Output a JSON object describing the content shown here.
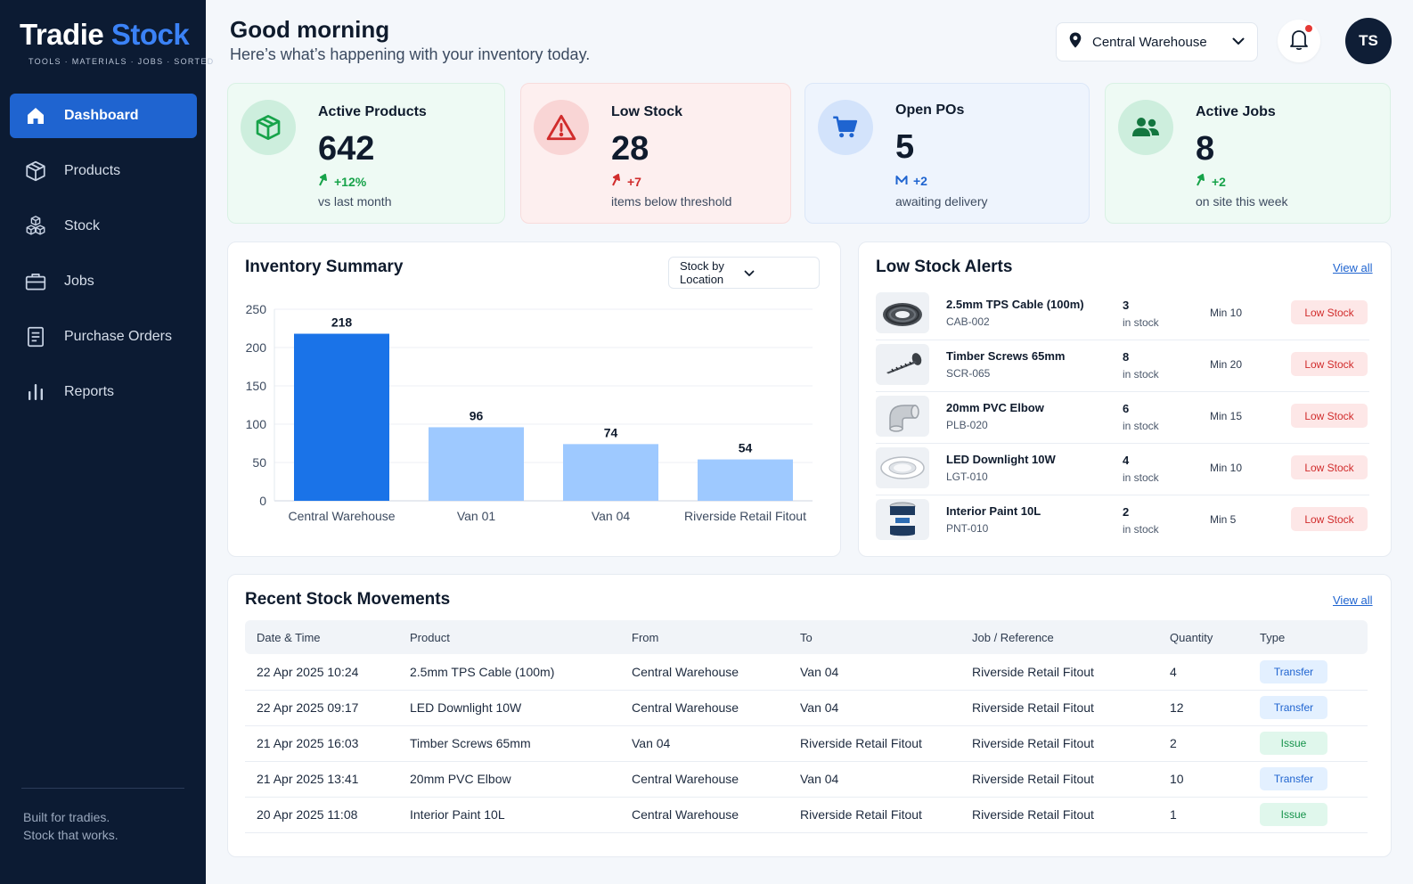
{
  "app": {
    "logo_primary": "Tradie",
    "logo_accent": "Stock",
    "tagline": "TOOLS · MATERIALS · JOBS · SORTED"
  },
  "sidebar": {
    "items": [
      {
        "label": "Dashboard",
        "icon": "home-icon",
        "active": true
      },
      {
        "label": "Products",
        "icon": "box-icon",
        "active": false
      },
      {
        "label": "Stock",
        "icon": "stacked-boxes-icon",
        "active": false
      },
      {
        "label": "Jobs",
        "icon": "briefcase-icon",
        "active": false
      },
      {
        "label": "Purchase Orders",
        "icon": "document-icon",
        "active": false
      },
      {
        "label": "Reports",
        "icon": "bar-chart-icon",
        "active": false
      }
    ],
    "footer_line1": "Built for tradies.",
    "footer_line2": "Stock that works."
  },
  "header": {
    "greeting": "Good morning",
    "subtitle": "Here’s what’s happening with your inventory today.",
    "location": "Central Warehouse",
    "avatar_initials": "TS",
    "has_notifications": true
  },
  "stats": [
    {
      "title": "Active Products",
      "value": "642",
      "delta": "+12%",
      "sub": "vs last month",
      "icon": "cube-icon",
      "color": "#17a34a"
    },
    {
      "title": "Low Stock",
      "value": "28",
      "delta": "+7",
      "sub": "items below threshold",
      "icon": "warning-icon",
      "color": "#d12c2c"
    },
    {
      "title": "Open POs",
      "value": "5",
      "delta": "+2",
      "sub": "awaiting delivery",
      "icon": "cart-icon",
      "color": "#1f64d0"
    },
    {
      "title": "Active Jobs",
      "value": "8",
      "delta": "+2",
      "sub": "on site this week",
      "icon": "people-icon",
      "color": "#17a34a"
    }
  ],
  "inventory_summary": {
    "title": "Inventory Summary",
    "selector": "Stock by Location"
  },
  "chart_data": {
    "type": "bar",
    "categories": [
      "Central Warehouse",
      "Van 01",
      "Van 04",
      "Riverside Retail Fitout"
    ],
    "values": [
      218,
      96,
      74,
      54
    ],
    "ylim": [
      0,
      250
    ],
    "yticks": [
      0,
      50,
      100,
      150,
      200,
      250
    ],
    "grid": true,
    "colors": [
      "#1a73e8",
      "#9ec9ff",
      "#9ec9ff",
      "#9ec9ff"
    ]
  },
  "low_stock_alerts": {
    "title": "Low Stock Alerts",
    "view_all": "View all",
    "qty_label": "in stock",
    "badge": "Low Stock",
    "items": [
      {
        "name": "2.5mm TPS Cable (100m)",
        "sku": "CAB-002",
        "qty": "3",
        "min": "Min 10",
        "thumb": "cable-coil-icon"
      },
      {
        "name": "Timber Screws 65mm",
        "sku": "SCR-065",
        "qty": "8",
        "min": "Min 20",
        "thumb": "screw-icon"
      },
      {
        "name": "20mm PVC Elbow",
        "sku": "PLB-020",
        "qty": "6",
        "min": "Min 15",
        "thumb": "pvc-elbow-icon"
      },
      {
        "name": "LED Downlight 10W",
        "sku": "LGT-010",
        "qty": "4",
        "min": "Min 10",
        "thumb": "downlight-icon"
      },
      {
        "name": "Interior Paint 10L",
        "sku": "PNT-010",
        "qty": "2",
        "min": "Min 5",
        "thumb": "paint-bucket-icon"
      }
    ]
  },
  "recent_movements": {
    "title": "Recent Stock Movements",
    "view_all": "View all",
    "columns": [
      "Date & Time",
      "Product",
      "From",
      "To",
      "Job / Reference",
      "Quantity",
      "Type"
    ],
    "rows": [
      {
        "date": "22 Apr 2025 10:24",
        "product": "2.5mm TPS Cable (100m)",
        "from": "Central Warehouse",
        "to": "Van 04",
        "job": "Riverside Retail Fitout",
        "qty": "4",
        "type": "Transfer"
      },
      {
        "date": "22 Apr 2025 09:17",
        "product": "LED Downlight 10W",
        "from": "Central Warehouse",
        "to": "Van 04",
        "job": "Riverside Retail Fitout",
        "qty": "12",
        "type": "Transfer"
      },
      {
        "date": "21 Apr 2025 16:03",
        "product": "Timber Screws 65mm",
        "from": "Van 04",
        "to": "Riverside Retail Fitout",
        "job": "Riverside Retail Fitout",
        "qty": "2",
        "type": "Issue"
      },
      {
        "date": "21 Apr 2025 13:41",
        "product": "20mm PVC Elbow",
        "from": "Central Warehouse",
        "to": "Van 04",
        "job": "Riverside Retail Fitout",
        "qty": "10",
        "type": "Transfer"
      },
      {
        "date": "20 Apr 2025 11:08",
        "product": "Interior Paint 10L",
        "from": "Central Warehouse",
        "to": "Riverside Retail Fitout",
        "job": "Riverside Retail Fitout",
        "qty": "1",
        "type": "Issue"
      }
    ]
  }
}
